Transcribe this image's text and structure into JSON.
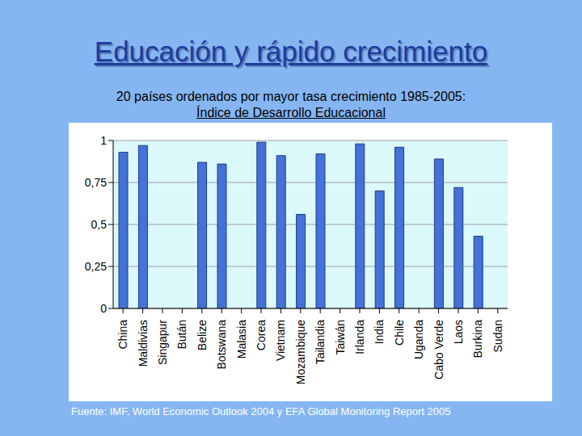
{
  "chart_data": {
    "type": "bar",
    "title": "Educación y rápido crecimiento",
    "subtitle": [
      "20 países ordenados por mayor tasa crecimiento 1985-2005:",
      "Índice de Desarrollo Educacional"
    ],
    "source": "Fuente: IMF, World Economic Outlook 2004 y EFA Global Monitoring Report 2005",
    "categories": [
      "China",
      "Maldivias",
      "Singapur",
      "Bután",
      "Belize",
      "Botswana",
      "Malasia",
      "Corea",
      "Vietnam",
      "Mozambique",
      "Tailandia",
      "Taiwán",
      "Irlanda",
      "India",
      "Chile",
      "Uganda",
      "Cabo Verde",
      "Laos",
      "Burkina",
      "Sudan"
    ],
    "values": [
      0.93,
      0.97,
      null,
      null,
      0.87,
      0.86,
      null,
      0.99,
      0.91,
      0.56,
      0.92,
      null,
      0.98,
      0.7,
      0.96,
      null,
      0.89,
      0.72,
      0.43,
      null
    ],
    "color": "#4472d8",
    "ylim": [
      0,
      1
    ],
    "yticks": [
      0,
      {
        "value": 0.25,
        "label": "0,25"
      },
      {
        "value": 0.5,
        "label": "0,5"
      },
      {
        "value": 0.75,
        "label": "0,75"
      },
      1
    ],
    "grid": true
  }
}
